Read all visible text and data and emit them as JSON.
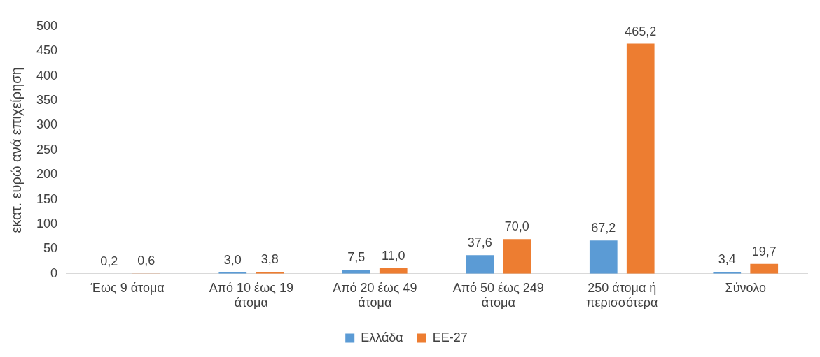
{
  "chart_data": {
    "type": "bar",
    "ylabel": "εκατ. ευρώ ανά επιχείρηση",
    "categories": [
      "Έως 9 άτομα",
      "Από 10 έως 19 άτομα",
      "Από 20 έως 49 άτομα",
      "Από 50 έως 249 άτομα",
      "250 άτομα ή περισσότερα",
      "Σύνολο"
    ],
    "series": [
      {
        "name": "Ελλάδα",
        "color": "#5b9bd5",
        "values": [
          0.2,
          3.0,
          7.5,
          37.6,
          67.2,
          3.4
        ],
        "value_labels": [
          "0,2",
          "3,0",
          "7,5",
          "37,6",
          "67,2",
          "3,4"
        ]
      },
      {
        "name": "ΕΕ-27",
        "color": "#ed7d31",
        "values": [
          0.6,
          3.8,
          11.0,
          70.0,
          465.2,
          19.7
        ],
        "value_labels": [
          "0,6",
          "3,8",
          "11,0",
          "70,0",
          "465,2",
          "19,7"
        ]
      }
    ],
    "ylim": [
      0,
      500
    ],
    "yticks": [
      0,
      50,
      100,
      150,
      200,
      250,
      300,
      350,
      400,
      450,
      500
    ],
    "grid": false,
    "legend": "bottom"
  }
}
